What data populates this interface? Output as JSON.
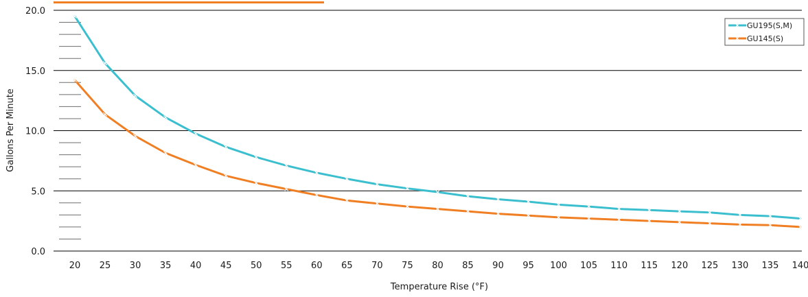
{
  "colors": {
    "series_1": "#3bbfcf",
    "series_2": "#f07f24",
    "accent_top": "#f07f24",
    "grid": "#000000",
    "marker": "#ffffff"
  },
  "chart_data": {
    "type": "line",
    "title": "",
    "xlabel": "Temperature Rise (°F)",
    "ylabel": "Gallons Per Minute",
    "ylim": [
      0,
      20
    ],
    "y_ticks": [
      "0.0",
      "5.0",
      "10.0",
      "15.0",
      "20.0"
    ],
    "x": [
      20,
      25,
      30,
      35,
      40,
      45,
      50,
      55,
      60,
      65,
      70,
      75,
      80,
      85,
      90,
      95,
      100,
      105,
      110,
      115,
      120,
      125,
      130,
      135,
      140
    ],
    "x_tick_labels": [
      "20",
      "25",
      "30",
      "35",
      "40",
      "45",
      "50",
      "55",
      "60",
      "65",
      "70",
      "75",
      "80",
      "85",
      "90",
      "95",
      "100",
      "105",
      "110",
      "115",
      "120",
      "125",
      "130",
      "135",
      "140"
    ],
    "grid": true,
    "legend_position": "top-right",
    "series": [
      {
        "name": "GU195(S,M)",
        "values": [
          19.5,
          15.6,
          12.9,
          11.1,
          9.75,
          8.65,
          7.8,
          7.1,
          6.5,
          6.0,
          5.55,
          5.2,
          4.9,
          4.55,
          4.3,
          4.1,
          3.85,
          3.7,
          3.5,
          3.4,
          3.3,
          3.2,
          3.0,
          2.9,
          2.7
        ]
      },
      {
        "name": "GU145(S)",
        "values": [
          14.2,
          11.35,
          9.55,
          8.15,
          7.15,
          6.25,
          5.65,
          5.15,
          4.65,
          4.2,
          3.95,
          3.7,
          3.5,
          3.3,
          3.1,
          2.95,
          2.8,
          2.7,
          2.6,
          2.5,
          2.4,
          2.3,
          2.2,
          2.15,
          2.0
        ]
      }
    ]
  }
}
